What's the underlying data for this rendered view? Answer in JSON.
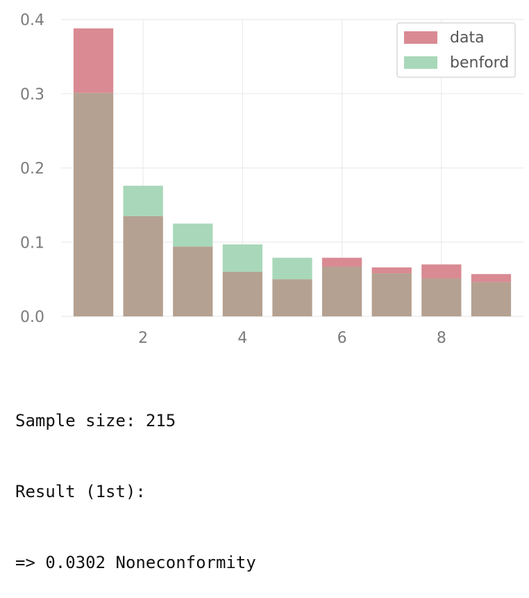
{
  "chart_data": {
    "type": "bar",
    "x": [
      1,
      2,
      3,
      4,
      5,
      6,
      7,
      8,
      9
    ],
    "series": [
      {
        "name": "data",
        "values": [
          0.388,
          0.135,
          0.094,
          0.06,
          0.05,
          0.079,
          0.066,
          0.07,
          0.057
        ],
        "color": "#d98a93"
      },
      {
        "name": "benford",
        "values": [
          0.301,
          0.176,
          0.125,
          0.097,
          0.079,
          0.067,
          0.058,
          0.051,
          0.046
        ],
        "color": "#a8d8b9"
      }
    ],
    "overlap_color": "#b5a191",
    "xticks": [
      "2",
      "4",
      "6",
      "8"
    ],
    "xtick_values": [
      2,
      4,
      6,
      8
    ],
    "yticks": [
      "0.0",
      "0.1",
      "0.2",
      "0.3",
      "0.4"
    ],
    "ytick_values": [
      0,
      0.1,
      0.2,
      0.3,
      0.4
    ],
    "xlim": [
      0.35,
      9.65
    ],
    "ylim": [
      0,
      0.4
    ],
    "grid": true,
    "legend_position": "top-right"
  },
  "output": {
    "line1": "Sample size: 215",
    "line2": "Result (1st):",
    "line3": "=> 0.0302 Noneconformity"
  }
}
